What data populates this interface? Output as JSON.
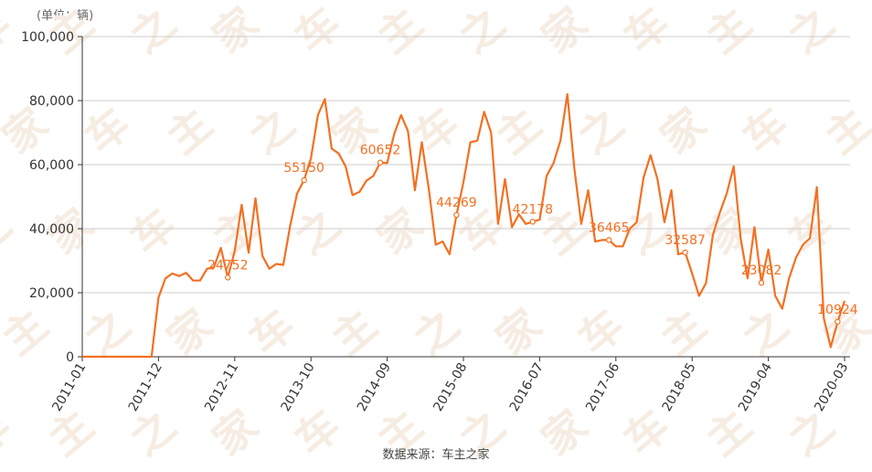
{
  "unit_label": "(单位：辆)",
  "source_label": "数据来源：车主之家",
  "colors": {
    "line": "#f37021",
    "grid": "#cccccc",
    "axis": "#333333",
    "label": "#f37021",
    "tick": "#333333"
  },
  "chart_data": {
    "type": "line",
    "ylim": [
      0,
      100000
    ],
    "yticks": [
      "0",
      "20,000",
      "40,000",
      "60,000",
      "80,000",
      "100,000"
    ],
    "ytick_values": [
      0,
      20000,
      40000,
      60000,
      80000,
      100000
    ],
    "xticks": [
      "2011-01",
      "2011-12",
      "2012-11",
      "2013-10",
      "2014-09",
      "2015-08",
      "2016-07",
      "2017-06",
      "2018-05",
      "2019-04",
      "2020-03"
    ],
    "grid": true,
    "series": [
      {
        "values": [
          0,
          0,
          0,
          0,
          0,
          0,
          0,
          0,
          0,
          0,
          0,
          18500,
          24500,
          26000,
          25200,
          26200,
          23800,
          23800,
          27500,
          28000,
          34000,
          24752,
          33000,
          47500,
          32500,
          49500,
          31500,
          27500,
          29000,
          28700,
          41000,
          51000,
          55150,
          62000,
          75500,
          80500,
          65000,
          63500,
          59500,
          50500,
          51500,
          55000,
          56500,
          60652,
          60500,
          69500,
          75500,
          70500,
          52000,
          67000,
          52500,
          35000,
          36000,
          32000,
          44269,
          54500,
          67000,
          67500,
          76500,
          70000,
          41500,
          55500,
          40500,
          44500,
          41500,
          42178,
          42800,
          56500,
          60500,
          67500,
          82000,
          59000,
          41500,
          52000,
          36000,
          36465,
          36465,
          34500,
          34500,
          40000,
          42000,
          56000,
          63000,
          55500,
          42000,
          52000,
          32000,
          32587,
          26000,
          19000,
          23000,
          38000,
          45000,
          51000,
          59500,
          37000,
          24500,
          40500,
          23082,
          33500,
          19000,
          15000,
          24500,
          31000,
          35000,
          37000,
          53000,
          12000,
          3000,
          10924,
          17500
        ],
        "labels": [
          {
            "index": 21,
            "text": "24752"
          },
          {
            "index": 32,
            "text": "55150"
          },
          {
            "index": 43,
            "text": "60652"
          },
          {
            "index": 54,
            "text": "44269"
          },
          {
            "index": 65,
            "text": "42178"
          },
          {
            "index": 76,
            "text": "36465"
          },
          {
            "index": 87,
            "text": "32587"
          },
          {
            "index": 98,
            "text": "23082"
          },
          {
            "index": 109,
            "text": "10924"
          }
        ]
      }
    ]
  }
}
